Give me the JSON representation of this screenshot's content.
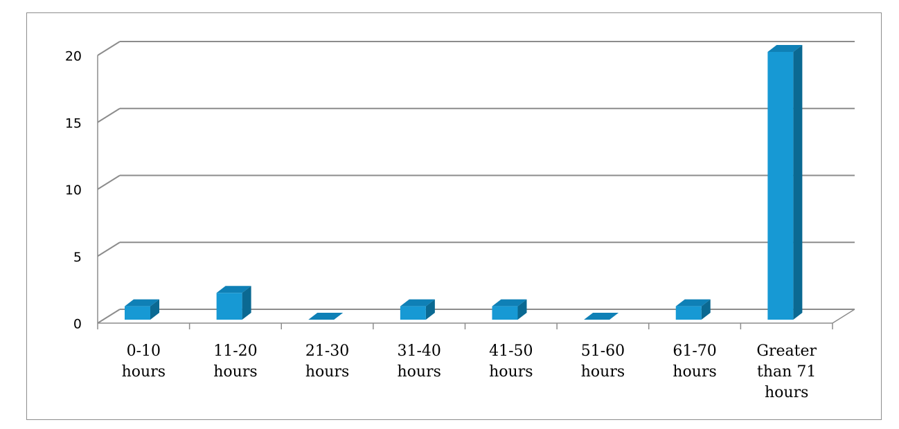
{
  "chart_data": {
    "type": "bar3d",
    "categories": [
      "0-10 hours",
      "11-20 hours",
      "21-30 hours",
      "31-40 hours",
      "41-50 hours",
      "51-60 hours",
      "61-70 hours",
      "Greater than 71 hours"
    ],
    "values": [
      1,
      2,
      0,
      1,
      1,
      0,
      1,
      20
    ],
    "color": "#1799d4",
    "ylim": [
      0,
      20
    ],
    "yticks": [
      0,
      5,
      10,
      15,
      20
    ],
    "grid": true
  }
}
